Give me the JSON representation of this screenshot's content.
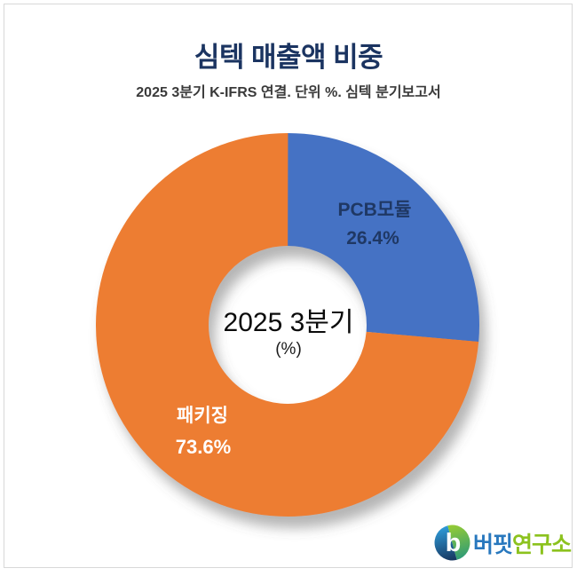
{
  "header": {
    "title": "심텍 매출액 비중",
    "title_color": "#1B3461",
    "subtitle": "2025 3분기 K-IFRS 연결. 단위 %. 심텍 분기보고서"
  },
  "chart_data": {
    "type": "pie",
    "subtype": "donut",
    "title": "심텍 매출액 비중",
    "unit": "%",
    "period": "2025 3분기",
    "source": "심텍 분기보고서",
    "center_label": "2025 3분기",
    "center_sublabel": "(%)",
    "start_angle_deg": 0,
    "direction": "clockwise",
    "legend_position": "none",
    "slices": [
      {
        "label": "PCB모듈",
        "value": 26.4,
        "value_display": "26.4%",
        "color": "#4472C4",
        "label_color": "#1F3864"
      },
      {
        "label": "패키징",
        "value": 73.6,
        "value_display": "73.6%",
        "color": "#ED7D31",
        "label_color": "#FFFFFF"
      }
    ]
  },
  "logo": {
    "name": "버핏연구소",
    "text_primary": "버핏",
    "text_secondary": "연구소",
    "primary_color": "#2878BE",
    "secondary_color": "#8CC21E"
  }
}
